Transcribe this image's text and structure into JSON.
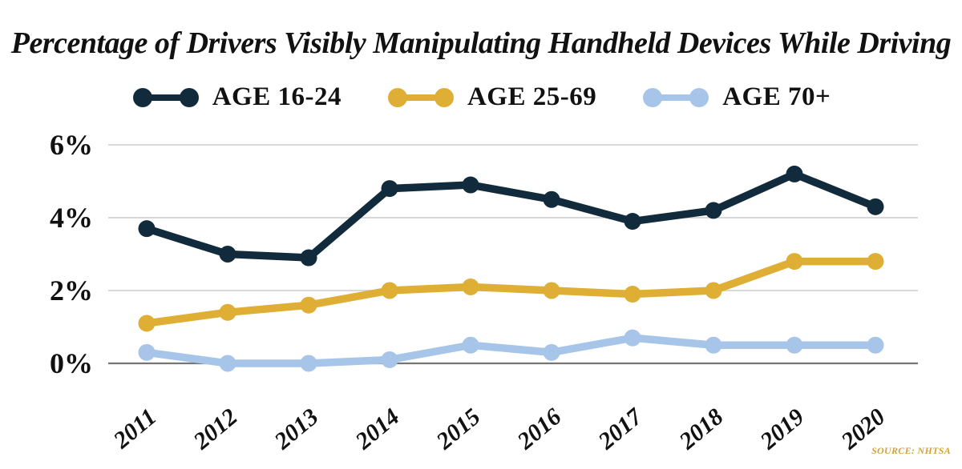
{
  "title": "Percentage of Drivers Visibly Manipulating Handheld Devices While Driving",
  "source_note": "SOURCE: NHTSA",
  "colors": {
    "navy": "#112b3d",
    "gold": "#dfae35",
    "light_blue": "#a7c5e8",
    "gridline": "#cccccc",
    "zero_line": "#757575",
    "text": "#111111",
    "source_text": "#cfa23c",
    "background": "#ffffff"
  },
  "chart_data": {
    "type": "line",
    "title": "Percentage of Drivers Visibly Manipulating Handheld Devices While Driving",
    "categories": [
      "2011",
      "2012",
      "2013",
      "2014",
      "2015",
      "2016",
      "2017",
      "2018",
      "2019",
      "2020"
    ],
    "series": [
      {
        "name": "AGE 16-24",
        "color": "#112b3d",
        "values": [
          3.7,
          3.0,
          2.9,
          4.8,
          4.9,
          4.5,
          3.9,
          4.2,
          5.2,
          4.3
        ]
      },
      {
        "name": "AGE 25-69",
        "color": "#dfae35",
        "values": [
          1.1,
          1.4,
          1.6,
          2.0,
          2.1,
          2.0,
          1.9,
          2.0,
          2.8,
          2.8
        ]
      },
      {
        "name": "AGE 70+",
        "color": "#a7c5e8",
        "values": [
          0.3,
          0.0,
          0.0,
          0.1,
          0.5,
          0.3,
          0.7,
          0.5,
          0.5,
          0.5
        ]
      }
    ],
    "xlabel": "",
    "ylabel": "",
    "ylim": [
      0,
      6
    ],
    "y_ticks": [
      {
        "value": 6,
        "label": "6%"
      },
      {
        "value": 4,
        "label": "4%"
      },
      {
        "value": 2,
        "label": "2%"
      },
      {
        "value": 0,
        "label": "0%"
      }
    ],
    "grid": true,
    "legend_position": "top",
    "source": "SOURCE: NHTSA"
  }
}
